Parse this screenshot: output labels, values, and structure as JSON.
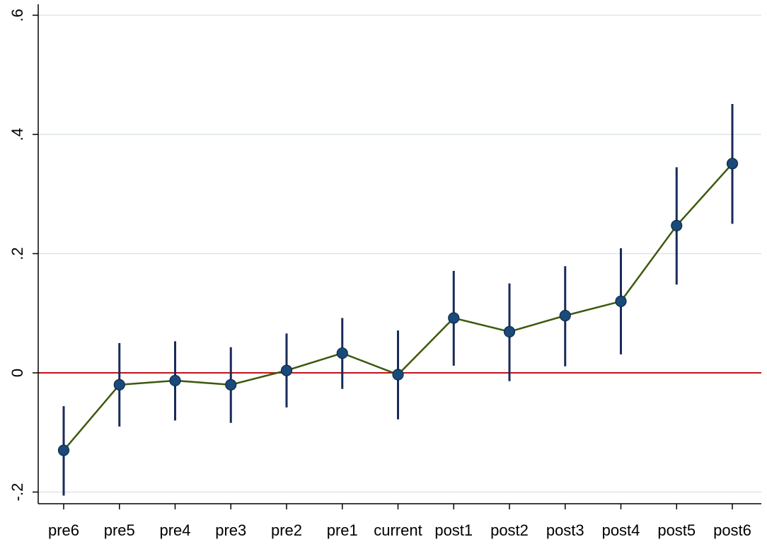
{
  "chart_data": {
    "type": "scatter",
    "title": "",
    "xlabel": "",
    "ylabel": "",
    "categories": [
      "pre6",
      "pre5",
      "pre4",
      "pre3",
      "pre2",
      "pre1",
      "current",
      "post1",
      "post2",
      "post3",
      "post4",
      "post5",
      "post6"
    ],
    "y_ticks": [
      -0.2,
      0,
      0.2,
      0.4,
      0.6
    ],
    "y_tick_labels": [
      "-.2",
      "0",
      ".2",
      ".4",
      ".6"
    ],
    "ylim": [
      -0.21,
      0.62
    ],
    "grid": true,
    "reference_line": 0,
    "series": [
      {
        "values": [
          -0.13,
          -0.02,
          -0.013,
          -0.02,
          0.004,
          0.033,
          -0.003,
          0.092,
          0.069,
          0.096,
          0.12,
          0.247,
          0.351
        ],
        "ci_low": [
          -0.206,
          -0.09,
          -0.08,
          -0.084,
          -0.058,
          -0.027,
          -0.078,
          0.012,
          -0.014,
          0.011,
          0.031,
          0.148,
          0.25
        ],
        "ci_high": [
          -0.056,
          0.05,
          0.053,
          0.043,
          0.066,
          0.092,
          0.071,
          0.171,
          0.15,
          0.179,
          0.209,
          0.345,
          0.451
        ]
      }
    ],
    "colors": {
      "line": "#3d5a0f",
      "marker_fill": "#1a4a7a",
      "marker_edge": "#0d2a4a",
      "ci": "#1a2a5a",
      "reference_line": "#c0141c",
      "grid": "#dde6ea",
      "axis": "#000000"
    }
  }
}
